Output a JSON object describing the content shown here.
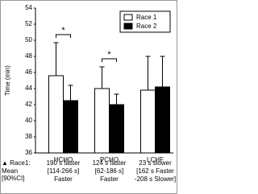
{
  "chart_data": {
    "type": "bar",
    "ylabel": "Time (min)",
    "categories": [
      "HCHO",
      "PCHO",
      "LCHF"
    ],
    "series": [
      {
        "name": "Race 1",
        "color": "#ffffff",
        "values": [
          45.6,
          44.0,
          43.8
        ],
        "errors": [
          4.1,
          2.7,
          4.2
        ]
      },
      {
        "name": "Race 2",
        "color": "#000000",
        "values": [
          42.5,
          42.0,
          44.2
        ],
        "errors": [
          1.9,
          1.3,
          3.8
        ]
      }
    ],
    "ylim": [
      36,
      54
    ],
    "yticks": [
      36,
      38,
      40,
      42,
      44,
      46,
      48,
      50,
      52,
      54
    ],
    "legend": "upper right",
    "significance": [
      {
        "category": "HCHO",
        "label": "*"
      },
      {
        "category": "PCHO",
        "label": "*"
      }
    ],
    "footer": {
      "label": "▲ Race1:",
      "row_label": [
        "Mean",
        "[90%CI]"
      ],
      "columns": [
        [
          "190 s faster",
          "[114-266 s]",
          "Faster"
        ],
        [
          "124 s faster",
          "[62-186 s]",
          "Faster"
        ],
        [
          "23 s slower",
          "[162 s Faster",
          "-208 s Slower]"
        ]
      ]
    }
  }
}
